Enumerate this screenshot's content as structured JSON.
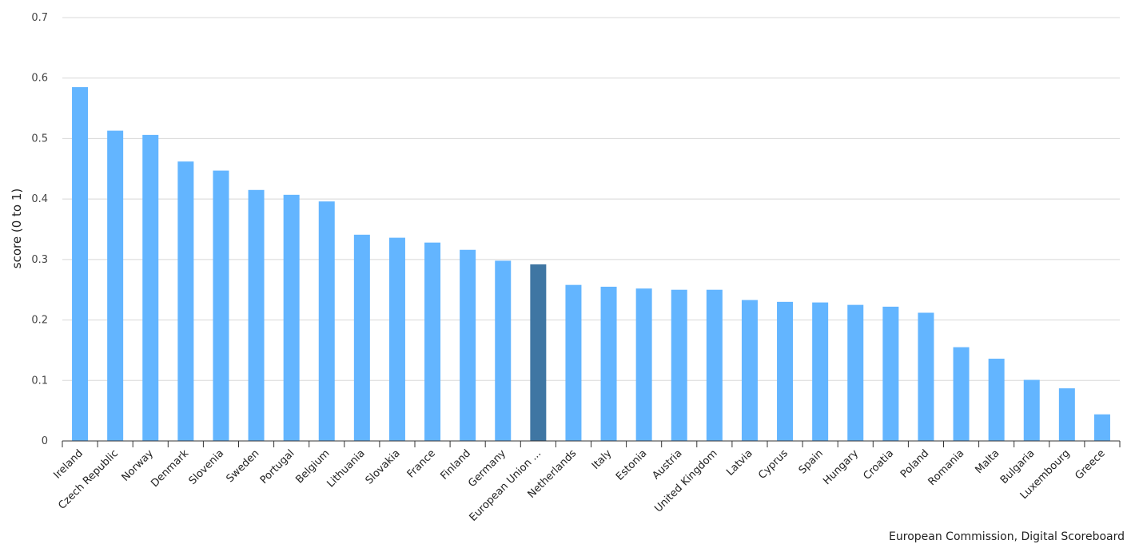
{
  "credit": "European Commission, Digital Scoreboard",
  "colors": {
    "bar": "#63b5ff",
    "highlight": "#3f76a3",
    "grid": "#d8d8d8",
    "axis": "#333333"
  },
  "chart_data": {
    "type": "bar",
    "ylabel": "score (0 to 1)",
    "ylim": [
      0,
      0.7
    ],
    "yticks": [
      0,
      0.1,
      0.2,
      0.3,
      0.4,
      0.5,
      0.6,
      0.7
    ],
    "grid": true,
    "highlight": "European Union ...",
    "categories": [
      "Ireland",
      "Czech Republic",
      "Norway",
      "Denmark",
      "Slovenia",
      "Sweden",
      "Portugal",
      "Belgium",
      "Lithuania",
      "Slovakia",
      "France",
      "Finland",
      "Germany",
      "European Union ...",
      "Netherlands",
      "Italy",
      "Estonia",
      "Austria",
      "United Kingdom",
      "Latvia",
      "Cyprus",
      "Spain",
      "Hungary",
      "Croatia",
      "Poland",
      "Romania",
      "Malta",
      "Bulgaria",
      "Luxembourg",
      "Greece"
    ],
    "values": [
      0.585,
      0.513,
      0.506,
      0.462,
      0.447,
      0.415,
      0.407,
      0.396,
      0.341,
      0.336,
      0.328,
      0.316,
      0.298,
      0.292,
      0.258,
      0.255,
      0.252,
      0.25,
      0.25,
      0.233,
      0.23,
      0.229,
      0.225,
      0.222,
      0.212,
      0.155,
      0.136,
      0.101,
      0.087,
      0.044
    ]
  }
}
